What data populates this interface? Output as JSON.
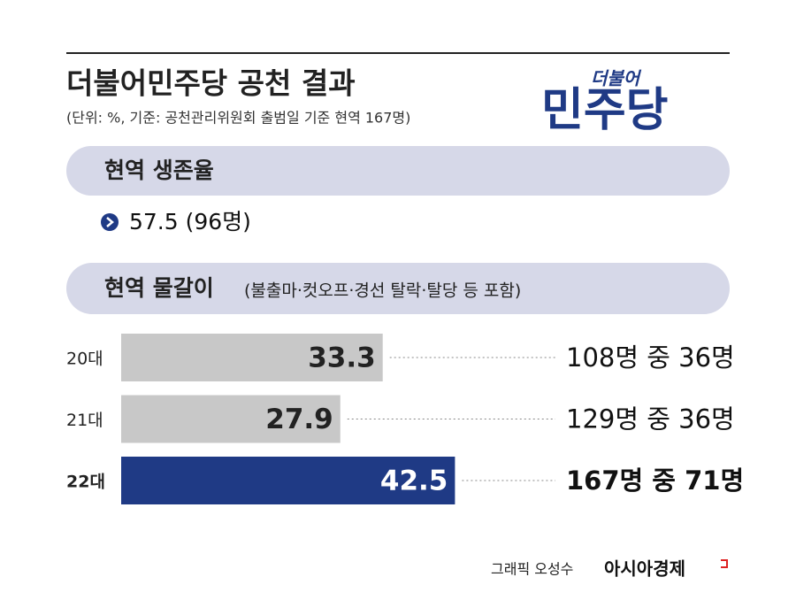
{
  "header": {
    "title": "더불어민주당 공천 결과",
    "subtitle": "(단위: %, 기준: 공천관리위원회 출범일 기준 현역 167명)",
    "logo_small": "더불어",
    "logo_big": "민주당"
  },
  "survival": {
    "heading": "현역 생존율",
    "text": "57.5 (96명)"
  },
  "chart_data": {
    "type": "bar",
    "orientation": "horizontal",
    "title": "현역 물갈이",
    "subtitle": "(불출마·컷오프·경선 탈락·탈당 등 포함)",
    "categories": [
      "20대",
      "21대",
      "22대"
    ],
    "values": [
      33.3,
      27.9,
      42.5
    ],
    "colors": [
      "#c8c8c8",
      "#c8c8c8",
      "#1f3a85"
    ],
    "annotations": [
      "108명 중 36명",
      "129명 중 36명",
      "167명 중 71명"
    ]
  },
  "footer": {
    "credit": "그래픽 오성수",
    "brand": "아시아경제"
  }
}
